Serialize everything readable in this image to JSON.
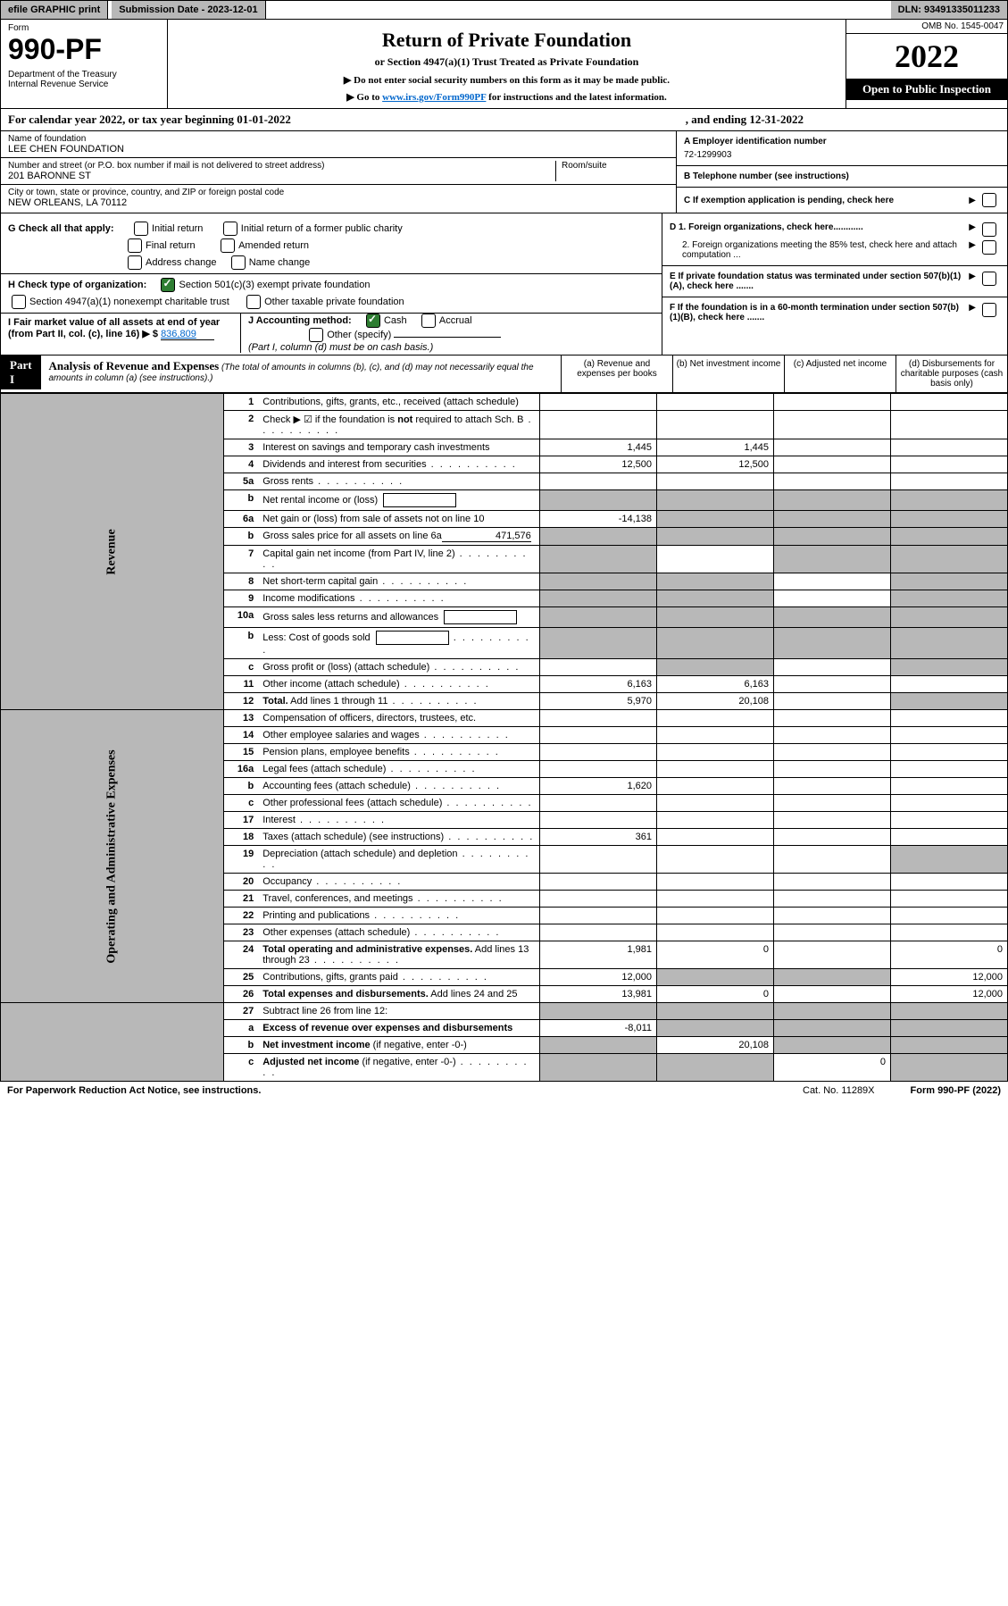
{
  "topbar": {
    "efile": "efile GRAPHIC print",
    "sub_label": "Submission Date - 2023-12-01",
    "dln": "DLN: 93491335011233"
  },
  "header": {
    "form_word": "Form",
    "form_no": "990-PF",
    "dept": "Department of the Treasury\nInternal Revenue Service",
    "title": "Return of Private Foundation",
    "subtitle": "or Section 4947(a)(1) Trust Treated as Private Foundation",
    "instr1": "▶ Do not enter social security numbers on this form as it may be made public.",
    "instr2_pre": "▶ Go to ",
    "instr2_link": "www.irs.gov/Form990PF",
    "instr2_post": " for instructions and the latest information.",
    "omb": "OMB No. 1545-0047",
    "year": "2022",
    "open": "Open to Public Inspection"
  },
  "calyear": {
    "left": "For calendar year 2022, or tax year beginning 01-01-2022",
    "right": ", and ending 12-31-2022"
  },
  "entity": {
    "name_label": "Name of foundation",
    "name": "LEE CHEN FOUNDATION",
    "addr_label": "Number and street (or P.O. box number if mail is not delivered to street address)",
    "addr": "201 BARONNE ST",
    "room_label": "Room/suite",
    "city_label": "City or town, state or province, country, and ZIP or foreign postal code",
    "city": "NEW ORLEANS, LA  70112",
    "ein_label": "A Employer identification number",
    "ein": "72-1299903",
    "tel_label": "B Telephone number (see instructions)",
    "c_label": "C If exemption application is pending, check here"
  },
  "checks": {
    "g_label": "G Check all that apply:",
    "g1": "Initial return",
    "g2": "Initial return of a former public charity",
    "g3": "Final return",
    "g4": "Amended return",
    "g5": "Address change",
    "g6": "Name change",
    "h_label": "H Check type of organization:",
    "h1": "Section 501(c)(3) exempt private foundation",
    "h2": "Section 4947(a)(1) nonexempt charitable trust",
    "h3": "Other taxable private foundation",
    "i_label": "I Fair market value of all assets at end of year (from Part II, col. (c), line 16) ▶ $",
    "i_val": "836,809",
    "j_label": "J Accounting method:",
    "j1": "Cash",
    "j2": "Accrual",
    "j3": "Other (specify)",
    "j_note": "(Part I, column (d) must be on cash basis.)",
    "d1": "D 1. Foreign organizations, check here............",
    "d2": "2. Foreign organizations meeting the 85% test, check here and attach computation ...",
    "e": "E  If private foundation status was terminated under section 507(b)(1)(A), check here .......",
    "f": "F  If the foundation is in a 60-month termination under section 507(b)(1)(B), check here ......."
  },
  "part1": {
    "label": "Part I",
    "title": "Analysis of Revenue and Expenses",
    "note": "(The total of amounts in columns (b), (c), and (d) may not necessarily equal the amounts in column (a) (see instructions).)",
    "col_a": "(a)  Revenue and expenses per books",
    "col_b": "(b)  Net investment income",
    "col_c": "(c)  Adjusted net income",
    "col_d": "(d)  Disbursements for charitable purposes (cash basis only)"
  },
  "sections": {
    "revenue": "Revenue",
    "opex": "Operating and Administrative Expenses"
  },
  "rows": [
    {
      "n": "1",
      "d": "Contributions, gifts, grants, etc., received (attach schedule)",
      "a": "",
      "b": "",
      "c": "",
      "dd": "",
      "greyC": false,
      "greyD": false
    },
    {
      "n": "2",
      "d": "Check ▶ ☑ if the foundation is <b>not</b> required to attach Sch. B",
      "a": "",
      "b": "",
      "c": "",
      "dd": "",
      "dots": true,
      "html": true
    },
    {
      "n": "3",
      "d": "Interest on savings and temporary cash investments",
      "a": "1,445",
      "b": "1,445",
      "c": "",
      "dd": ""
    },
    {
      "n": "4",
      "d": "Dividends and interest from securities",
      "a": "12,500",
      "b": "12,500",
      "c": "",
      "dd": "",
      "dots": true
    },
    {
      "n": "5a",
      "d": "Gross rents",
      "a": "",
      "b": "",
      "c": "",
      "dd": "",
      "dots": true
    },
    {
      "n": "b",
      "d": "Net rental income or (loss)",
      "a": "",
      "b": "",
      "c": "",
      "dd": "",
      "greyA": true,
      "greyB": true,
      "greyC": true,
      "greyD": true,
      "box": true
    },
    {
      "n": "6a",
      "d": "Net gain or (loss) from sale of assets not on line 10",
      "a": "-14,138",
      "b": "",
      "c": "",
      "dd": "",
      "greyB": true,
      "greyC": true,
      "greyD": true
    },
    {
      "n": "b",
      "d": "Gross sales price for all assets on line 6a",
      "a": "",
      "b": "",
      "c": "",
      "dd": "",
      "inline": "471,576",
      "greyA": true,
      "greyB": true,
      "greyC": true,
      "greyD": true
    },
    {
      "n": "7",
      "d": "Capital gain net income (from Part IV, line 2)",
      "a": "",
      "b": "",
      "c": "",
      "dd": "",
      "greyA": true,
      "greyC": true,
      "greyD": true,
      "dots": true
    },
    {
      "n": "8",
      "d": "Net short-term capital gain",
      "a": "",
      "b": "",
      "c": "",
      "dd": "",
      "greyA": true,
      "greyB": true,
      "greyD": true,
      "dots": true
    },
    {
      "n": "9",
      "d": "Income modifications",
      "a": "",
      "b": "",
      "c": "",
      "dd": "",
      "greyA": true,
      "greyB": true,
      "greyD": true,
      "dots": true
    },
    {
      "n": "10a",
      "d": "Gross sales less returns and allowances",
      "a": "",
      "b": "",
      "c": "",
      "dd": "",
      "greyA": true,
      "greyB": true,
      "greyC": true,
      "greyD": true,
      "box": true
    },
    {
      "n": "b",
      "d": "Less: Cost of goods sold",
      "a": "",
      "b": "",
      "c": "",
      "dd": "",
      "greyA": true,
      "greyB": true,
      "greyC": true,
      "greyD": true,
      "box": true,
      "dots": true
    },
    {
      "n": "c",
      "d": "Gross profit or (loss) (attach schedule)",
      "a": "",
      "b": "",
      "c": "",
      "dd": "",
      "greyB": true,
      "greyD": true,
      "dots": true
    },
    {
      "n": "11",
      "d": "Other income (attach schedule)",
      "a": "6,163",
      "b": "6,163",
      "c": "",
      "dd": "",
      "dots": true
    },
    {
      "n": "12",
      "d": "<b>Total.</b> Add lines 1 through 11",
      "a": "5,970",
      "b": "20,108",
      "c": "",
      "dd": "",
      "greyD": true,
      "dots": true,
      "html": true
    }
  ],
  "rows2": [
    {
      "n": "13",
      "d": "Compensation of officers, directors, trustees, etc.",
      "a": "",
      "b": "",
      "c": "",
      "dd": ""
    },
    {
      "n": "14",
      "d": "Other employee salaries and wages",
      "a": "",
      "b": "",
      "c": "",
      "dd": "",
      "dots": true
    },
    {
      "n": "15",
      "d": "Pension plans, employee benefits",
      "a": "",
      "b": "",
      "c": "",
      "dd": "",
      "dots": true
    },
    {
      "n": "16a",
      "d": "Legal fees (attach schedule)",
      "a": "",
      "b": "",
      "c": "",
      "dd": "",
      "dots": true
    },
    {
      "n": "b",
      "d": "Accounting fees (attach schedule)",
      "a": "1,620",
      "b": "",
      "c": "",
      "dd": "",
      "dots": true
    },
    {
      "n": "c",
      "d": "Other professional fees (attach schedule)",
      "a": "",
      "b": "",
      "c": "",
      "dd": "",
      "dots": true
    },
    {
      "n": "17",
      "d": "Interest",
      "a": "",
      "b": "",
      "c": "",
      "dd": "",
      "dots": true
    },
    {
      "n": "18",
      "d": "Taxes (attach schedule) (see instructions)",
      "a": "361",
      "b": "",
      "c": "",
      "dd": "",
      "dots": true
    },
    {
      "n": "19",
      "d": "Depreciation (attach schedule) and depletion",
      "a": "",
      "b": "",
      "c": "",
      "dd": "",
      "greyD": true,
      "dots": true
    },
    {
      "n": "20",
      "d": "Occupancy",
      "a": "",
      "b": "",
      "c": "",
      "dd": "",
      "dots": true
    },
    {
      "n": "21",
      "d": "Travel, conferences, and meetings",
      "a": "",
      "b": "",
      "c": "",
      "dd": "",
      "dots": true
    },
    {
      "n": "22",
      "d": "Printing and publications",
      "a": "",
      "b": "",
      "c": "",
      "dd": "",
      "dots": true
    },
    {
      "n": "23",
      "d": "Other expenses (attach schedule)",
      "a": "",
      "b": "",
      "c": "",
      "dd": "",
      "dots": true
    },
    {
      "n": "24",
      "d": "<b>Total operating and administrative expenses.</b> Add lines 13 through 23",
      "a": "1,981",
      "b": "0",
      "c": "",
      "dd": "0",
      "dots": true,
      "html": true
    },
    {
      "n": "25",
      "d": "Contributions, gifts, grants paid",
      "a": "12,000",
      "b": "",
      "c": "",
      "dd": "12,000",
      "greyB": true,
      "greyC": true,
      "dots": true
    },
    {
      "n": "26",
      "d": "<b>Total expenses and disbursements.</b> Add lines 24 and 25",
      "a": "13,981",
      "b": "0",
      "c": "",
      "dd": "12,000",
      "html": true
    }
  ],
  "rows3": [
    {
      "n": "27",
      "d": "Subtract line 26 from line 12:",
      "a": "",
      "b": "",
      "c": "",
      "dd": "",
      "greyA": true,
      "greyB": true,
      "greyC": true,
      "greyD": true
    },
    {
      "n": "a",
      "d": "<b>Excess of revenue over expenses and disbursements</b>",
      "a": "-8,011",
      "b": "",
      "c": "",
      "dd": "",
      "greyB": true,
      "greyC": true,
      "greyD": true,
      "html": true
    },
    {
      "n": "b",
      "d": "<b>Net investment income</b> (if negative, enter -0-)",
      "a": "",
      "b": "20,108",
      "c": "",
      "dd": "",
      "greyA": true,
      "greyC": true,
      "greyD": true,
      "html": true
    },
    {
      "n": "c",
      "d": "<b>Adjusted net income</b> (if negative, enter -0-)",
      "a": "",
      "b": "",
      "c": "0",
      "dd": "",
      "greyA": true,
      "greyB": true,
      "greyD": true,
      "dots": true,
      "html": true
    }
  ],
  "footer": {
    "left": "For Paperwork Reduction Act Notice, see instructions.",
    "cat": "Cat. No. 11289X",
    "right": "Form 990-PF (2022)"
  }
}
